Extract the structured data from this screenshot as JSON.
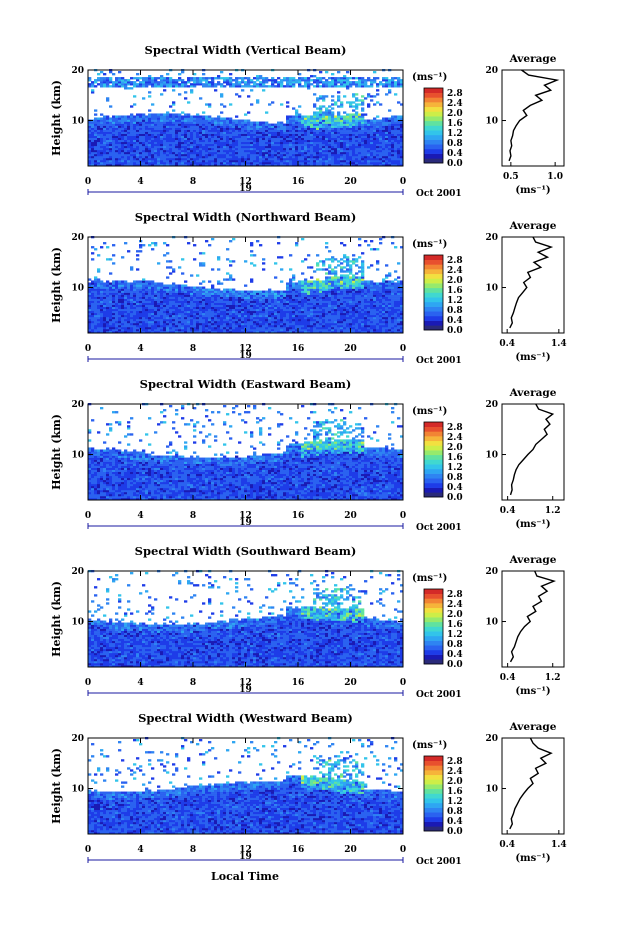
{
  "figure": {
    "xlabel": "Local Time",
    "colors": [
      "#2a2a7a",
      "#1a1ab4",
      "#1e3ce8",
      "#2a62f0",
      "#2e84f2",
      "#2ea6f2",
      "#32c4ea",
      "#40d8d0",
      "#60e2a0",
      "#96ea6c",
      "#cdee48",
      "#f2e040",
      "#f6b43a",
      "#f28434",
      "#e8502e",
      "#d42a28"
    ]
  },
  "chart_data": [
    {
      "type": "heatmap",
      "title": "Spectral Width (Vertical Beam)",
      "ylabel": "Height (km)",
      "y_ticks": [
        "20",
        "10"
      ],
      "x_ticks": [
        "0",
        "4",
        "8",
        "12",
        "16",
        "20",
        "0"
      ],
      "x_range_hours": [
        0,
        24
      ],
      "date_label": "19",
      "month_label": "Oct 2001",
      "colorbar": {
        "unit": "(ms⁻¹)",
        "levels": [
          "2.8",
          "2.4",
          "2.0",
          "1.6",
          "1.2",
          "0.8",
          "0.4",
          "0.0"
        ],
        "range": [
          0.0,
          3.0
        ]
      },
      "average": {
        "title": "Average",
        "y_ticks": [
          "20",
          "10"
        ],
        "x_ticks": [
          "0.5",
          "1.0"
        ],
        "xlim": [
          0.4,
          1.1
        ],
        "xlabel": "(ms⁻¹)",
        "height_km": [
          2,
          3,
          4,
          5,
          6,
          7,
          8,
          9,
          10,
          11,
          12,
          13,
          14,
          15,
          16,
          17,
          18,
          19,
          20
        ],
        "values": [
          0.48,
          0.5,
          0.49,
          0.51,
          0.5,
          0.52,
          0.53,
          0.56,
          0.6,
          0.68,
          0.64,
          0.72,
          0.85,
          0.78,
          0.95,
          0.88,
          1.02,
          0.7,
          0.62
        ]
      }
    },
    {
      "type": "heatmap",
      "title": "Spectral Width (Northward Beam)",
      "ylabel": "Height (km)",
      "y_ticks": [
        "20",
        "10"
      ],
      "x_ticks": [
        "0",
        "4",
        "8",
        "12",
        "16",
        "20",
        "0"
      ],
      "x_range_hours": [
        0,
        24
      ],
      "date_label": "19",
      "month_label": "Oct 2001",
      "colorbar": {
        "unit": "(ms⁻¹)",
        "levels": [
          "2.8",
          "2.4",
          "2.0",
          "1.6",
          "1.2",
          "0.8",
          "0.4",
          "0.0"
        ],
        "range": [
          0.0,
          3.0
        ]
      },
      "average": {
        "title": "Average",
        "y_ticks": [
          "20",
          "10"
        ],
        "x_ticks": [
          "0.4",
          "1.4"
        ],
        "xlim": [
          0.3,
          1.5
        ],
        "xlabel": "(ms⁻¹)",
        "height_km": [
          2,
          3,
          4,
          5,
          6,
          7,
          8,
          9,
          10,
          11,
          12,
          13,
          14,
          15,
          16,
          17,
          18,
          19,
          20
        ],
        "values": [
          0.45,
          0.5,
          0.48,
          0.52,
          0.55,
          0.58,
          0.62,
          0.7,
          0.78,
          0.72,
          0.85,
          0.8,
          1.05,
          0.92,
          1.18,
          1.0,
          1.25,
          0.95,
          0.9
        ]
      }
    },
    {
      "type": "heatmap",
      "title": "Spectral Width (Eastward Beam)",
      "ylabel": "Height (km)",
      "y_ticks": [
        "20",
        "10"
      ],
      "x_ticks": [
        "0",
        "4",
        "8",
        "12",
        "16",
        "20",
        "0"
      ],
      "x_range_hours": [
        0,
        24
      ],
      "date_label": "19",
      "month_label": "Oct 2001",
      "colorbar": {
        "unit": "(ms⁻¹)",
        "levels": [
          "2.8",
          "2.4",
          "2.0",
          "1.6",
          "1.2",
          "0.8",
          "0.4",
          "0.0"
        ],
        "range": [
          0.0,
          3.0
        ]
      },
      "average": {
        "title": "Average",
        "y_ticks": [
          "20",
          "10"
        ],
        "x_ticks": [
          "0.4",
          "1.2"
        ],
        "xlim": [
          0.3,
          1.4
        ],
        "xlabel": "(ms⁻¹)",
        "height_km": [
          2,
          3,
          4,
          5,
          6,
          7,
          8,
          9,
          10,
          11,
          12,
          13,
          14,
          15,
          16,
          17,
          18,
          19,
          20
        ],
        "values": [
          0.45,
          0.48,
          0.47,
          0.5,
          0.52,
          0.55,
          0.6,
          0.68,
          0.76,
          0.85,
          0.9,
          1.0,
          1.1,
          1.05,
          1.15,
          1.08,
          1.2,
          0.95,
          0.9
        ]
      }
    },
    {
      "type": "heatmap",
      "title": "Spectral Width (Southward Beam)",
      "ylabel": "Height (km)",
      "y_ticks": [
        "20",
        "10"
      ],
      "x_ticks": [
        "0",
        "4",
        "8",
        "12",
        "16",
        "20",
        "0"
      ],
      "x_range_hours": [
        0,
        24
      ],
      "date_label": "19",
      "month_label": "Oct 2001",
      "colorbar": {
        "unit": "(ms⁻¹)",
        "levels": [
          "2.8",
          "2.4",
          "2.0",
          "1.6",
          "1.2",
          "0.8",
          "0.4",
          "0.0"
        ],
        "range": [
          0.0,
          3.0
        ]
      },
      "average": {
        "title": "Average",
        "y_ticks": [
          "20",
          "10"
        ],
        "x_ticks": [
          "0.4",
          "1.2"
        ],
        "xlim": [
          0.3,
          1.4
        ],
        "xlabel": "(ms⁻¹)",
        "height_km": [
          2,
          3,
          4,
          5,
          6,
          7,
          8,
          9,
          10,
          11,
          12,
          13,
          14,
          15,
          16,
          17,
          18,
          19,
          20
        ],
        "values": [
          0.45,
          0.5,
          0.47,
          0.52,
          0.55,
          0.58,
          0.63,
          0.7,
          0.8,
          0.75,
          0.9,
          0.85,
          1.0,
          0.95,
          1.1,
          1.0,
          1.22,
          0.92,
          0.88
        ]
      }
    },
    {
      "type": "heatmap",
      "title": "Spectral Width (Westward Beam)",
      "ylabel": "Height (km)",
      "y_ticks": [
        "20",
        "10"
      ],
      "x_ticks": [
        "0",
        "4",
        "8",
        "12",
        "16",
        "20",
        "0"
      ],
      "x_range_hours": [
        0,
        24
      ],
      "date_label": "19",
      "month_label": "Oct 2001",
      "colorbar": {
        "unit": "(ms⁻¹)",
        "levels": [
          "2.8",
          "2.4",
          "2.0",
          "1.6",
          "1.2",
          "0.8",
          "0.4",
          "0.0"
        ],
        "range": [
          0.0,
          3.0
        ]
      },
      "average": {
        "title": "Average",
        "y_ticks": [
          "20",
          "10"
        ],
        "x_ticks": [
          "0.4",
          "1.4"
        ],
        "xlim": [
          0.3,
          1.5
        ],
        "xlabel": "(ms⁻¹)",
        "height_km": [
          2,
          3,
          4,
          5,
          6,
          7,
          8,
          9,
          10,
          11,
          12,
          13,
          14,
          15,
          16,
          17,
          18,
          19,
          20
        ],
        "values": [
          0.45,
          0.5,
          0.48,
          0.52,
          0.55,
          0.6,
          0.65,
          0.72,
          0.8,
          0.9,
          0.85,
          1.0,
          0.95,
          1.15,
          1.05,
          1.25,
          1.0,
          0.9,
          0.85
        ]
      }
    }
  ]
}
